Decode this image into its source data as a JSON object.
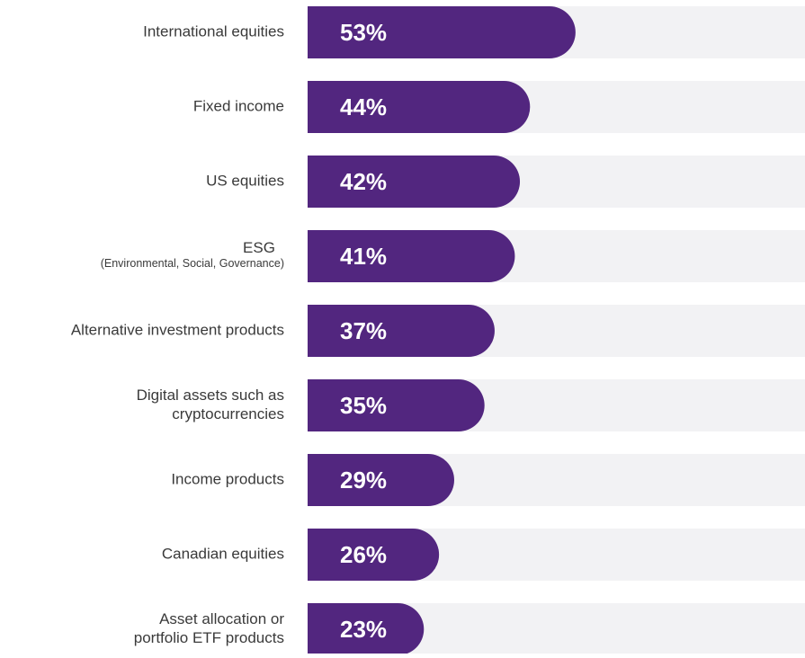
{
  "chart_data": {
    "type": "hbar",
    "categories": [
      [
        "International equities"
      ],
      [
        "Fixed income"
      ],
      [
        "US equities"
      ],
      [
        "ESG",
        "(Environmental, Social, Governance)"
      ],
      [
        "Alternative investment products"
      ],
      [
        "Digital assets such as",
        "cryptocurrencies"
      ],
      [
        "Income products"
      ],
      [
        "Canadian equities"
      ],
      [
        "Asset allocation or",
        "portfolio ETF products"
      ]
    ],
    "values": [
      53,
      44,
      42,
      41,
      37,
      35,
      29,
      26,
      23
    ],
    "value_labels": [
      "53%",
      "44%",
      "42%",
      "41%",
      "37%",
      "35%",
      "29%",
      "26%",
      "23%"
    ],
    "color": "#52267f",
    "xlim": [
      0,
      100
    ]
  }
}
